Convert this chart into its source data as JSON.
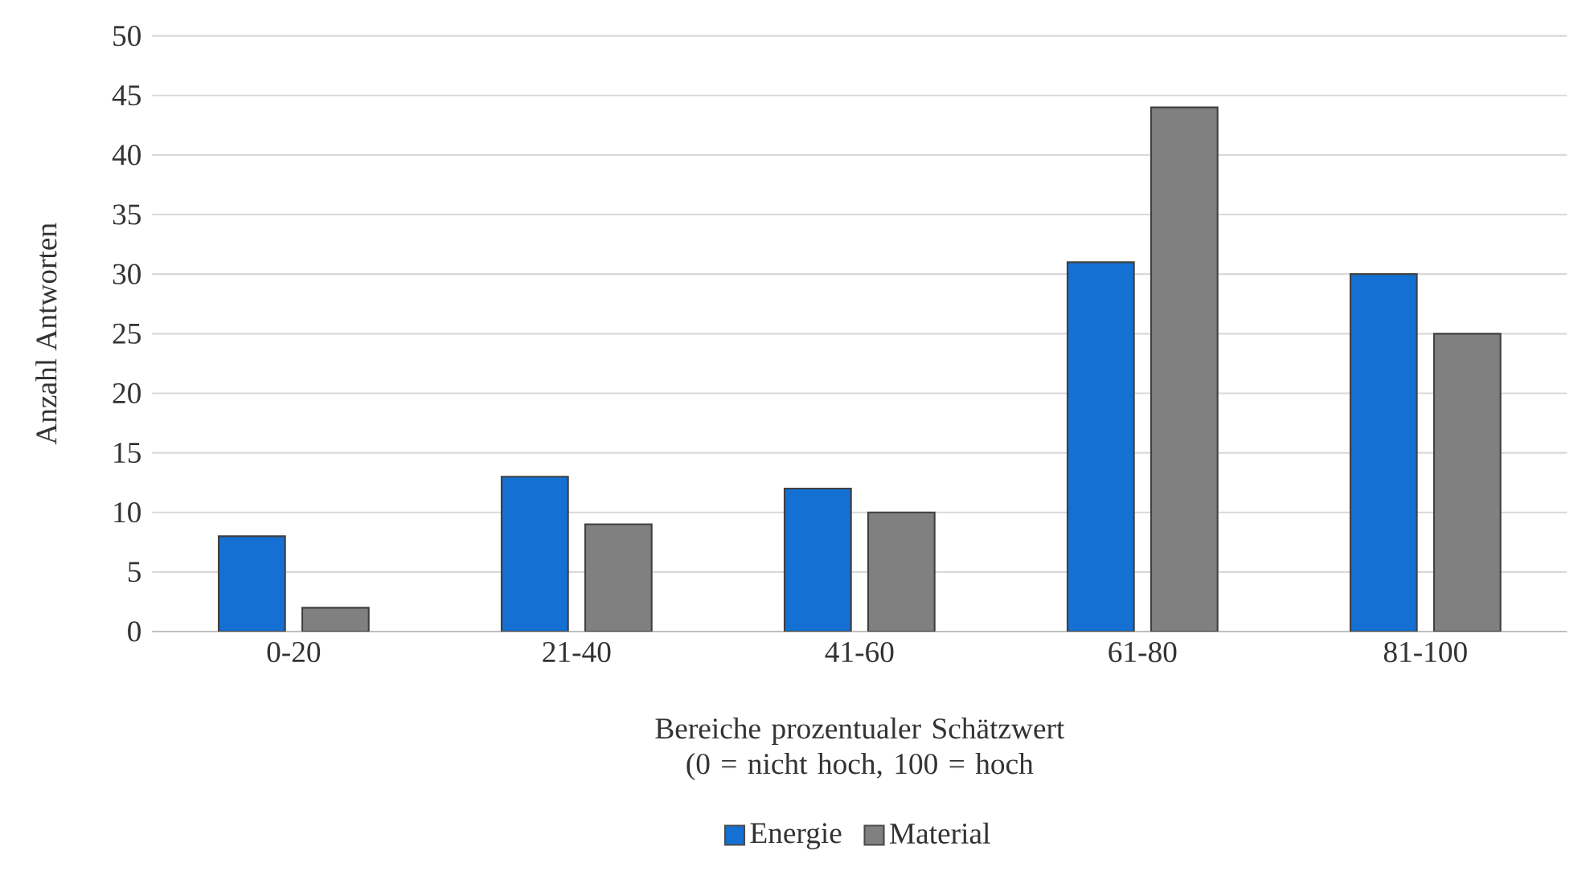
{
  "chart_data": {
    "type": "bar",
    "xlabel": "Bereiche prozentualer Schätzwert (0 = nicht hoch, 100 = hoch",
    "ylabel": "Anzahl Antworten",
    "categories": [
      "0-20",
      "21-40",
      "41-60",
      "61-80",
      "81-100"
    ],
    "series": [
      {
        "name": "Energie",
        "color": "#1470d2",
        "values": [
          8,
          13,
          12,
          31,
          30
        ]
      },
      {
        "name": "Material",
        "color": "#808080",
        "values": [
          2,
          9,
          10,
          44,
          25
        ]
      }
    ],
    "ylim": [
      0,
      50
    ],
    "yticks": [
      0,
      5,
      10,
      15,
      20,
      25,
      30,
      35,
      40,
      45,
      50
    ],
    "grid": "y",
    "legend": "bottom"
  }
}
